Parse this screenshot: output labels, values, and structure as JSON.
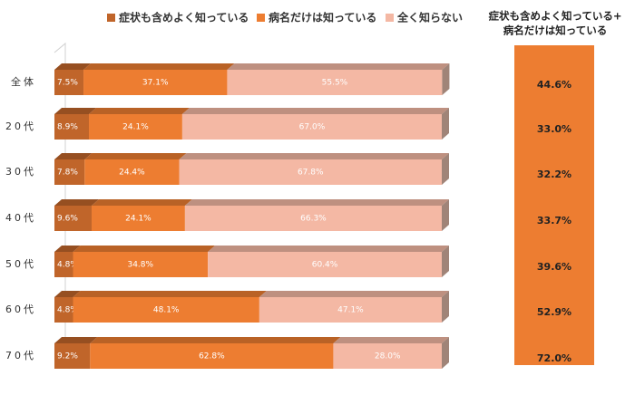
{
  "chart_data": {
    "type": "stacked-bar-horizontal",
    "categories": [
      "全体",
      "20代",
      "30代",
      "40代",
      "50代",
      "60代",
      "70代"
    ],
    "xlim": [
      0,
      100
    ],
    "series": [
      {
        "name": "症状も含めよく知っている",
        "color": "#c0652a",
        "values": [
          7.5,
          8.9,
          7.8,
          9.6,
          4.8,
          4.8,
          9.2
        ],
        "value_labels": [
          "7.5%",
          "8.9%",
          "7.8%",
          "9.6%",
          "4.8%",
          "4.8%",
          "9.2%"
        ]
      },
      {
        "name": "病名だけは知っている",
        "color": "#ed7d31",
        "values": [
          37.1,
          24.1,
          24.4,
          24.1,
          34.8,
          48.1,
          62.8
        ],
        "value_labels": [
          "37.1%",
          "24.1%",
          "24.4%",
          "24.1%",
          "34.8%",
          "48.1%",
          "62.8%"
        ]
      },
      {
        "name": "全く知らない",
        "color": "#f4b8a4",
        "values": [
          55.5,
          67.0,
          67.8,
          66.3,
          60.4,
          47.1,
          28.0
        ],
        "value_labels": [
          "55.5%",
          "67.0%",
          "67.8%",
          "66.3%",
          "60.4%",
          "47.1%",
          "28.0%"
        ]
      }
    ],
    "totals": {
      "title_lines": [
        "症状も含めよく知っている+",
        "病名だけは知っている"
      ],
      "color": "#ed7d31",
      "values": [
        44.6,
        33.0,
        32.2,
        33.7,
        39.6,
        52.9,
        72.0
      ],
      "value_labels": [
        "44.6%",
        "33.0%",
        "32.2%",
        "33.7%",
        "39.6%",
        "52.9%",
        "72.0%"
      ]
    }
  }
}
